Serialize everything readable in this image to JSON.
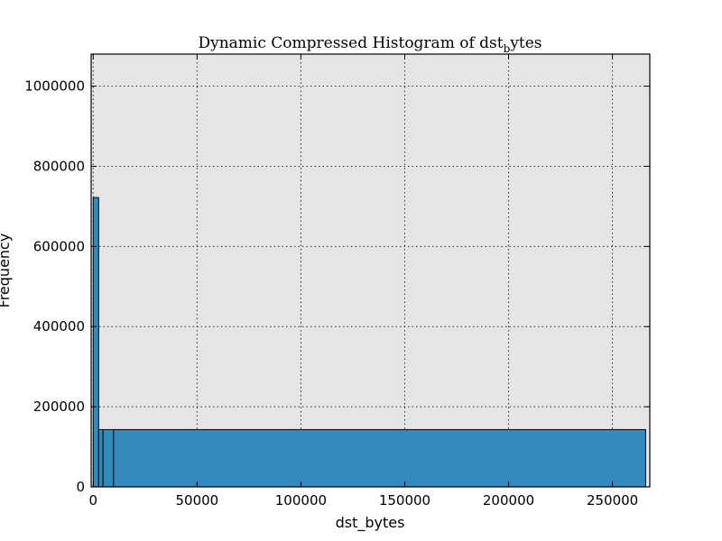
{
  "chart_data": {
    "type": "bar",
    "title_main": "Dynamic Compressed Histogram of dst",
    "title_sub": "b",
    "title_tail": "ytes",
    "xlabel": "dst_bytes",
    "ylabel": "Frequency",
    "xlim": [
      -1000,
      268000
    ],
    "ylim": [
      0,
      1080000
    ],
    "xticks": [
      0,
      50000,
      100000,
      150000,
      200000,
      250000
    ],
    "xtick_labels": [
      "0",
      "50000",
      "100000",
      "150000",
      "200000",
      "250000"
    ],
    "yticks": [
      0,
      200000,
      400000,
      600000,
      800000,
      1000000
    ],
    "ytick_labels": [
      "0",
      "200000",
      "400000",
      "600000",
      "800000",
      "1000000"
    ],
    "grid": true,
    "background": "#e5e5e5",
    "bar_color": "#348abd",
    "bins": [
      {
        "x0": 0,
        "x1": 2600,
        "value": 722000
      },
      {
        "x0": 2600,
        "x1": 4700,
        "value": 143000
      },
      {
        "x0": 4700,
        "x1": 9800,
        "value": 143000
      },
      {
        "x0": 9800,
        "x1": 266000,
        "value": 143000
      }
    ]
  }
}
